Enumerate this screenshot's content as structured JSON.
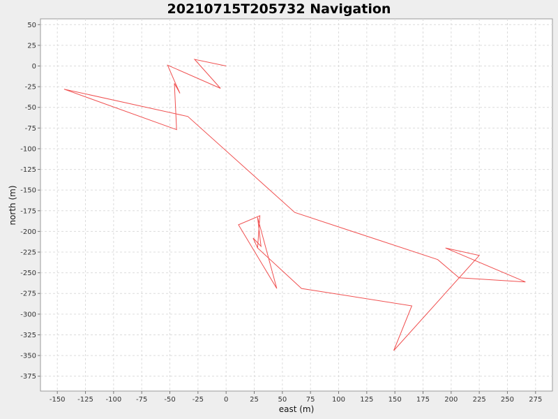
{
  "chart_data": {
    "type": "line",
    "title": "20210715T205732 Navigation",
    "xlabel": "east (m)",
    "ylabel": "north (m)",
    "xlim": [
      -165,
      290
    ],
    "ylim": [
      -393,
      57
    ],
    "xticks": [
      -150,
      -125,
      -100,
      -75,
      -50,
      -25,
      0,
      25,
      50,
      75,
      100,
      125,
      150,
      175,
      200,
      225,
      250,
      275
    ],
    "yticks": [
      50,
      25,
      0,
      -25,
      -50,
      -75,
      -100,
      -125,
      -150,
      -175,
      -200,
      -225,
      -250,
      -275,
      -300,
      -325,
      -350,
      -375
    ],
    "grid": true,
    "series": [
      {
        "color": "#f05050",
        "x": [
          0,
          -28,
          -5,
          -52,
          -45,
          -41,
          -46,
          -44,
          -144,
          -34,
          61,
          188,
          207,
          266,
          195,
          225,
          149,
          165,
          67,
          28,
          24,
          31,
          28,
          45,
          11,
          30,
          28
        ],
        "y": [
          0,
          8,
          -27,
          1,
          -21,
          -33,
          -21,
          -77,
          -28,
          -61,
          -177,
          -234,
          -256,
          -261,
          -220,
          -229,
          -344,
          -290,
          -269,
          -220,
          -208,
          -218,
          -183,
          -269,
          -192,
          -181,
          -220
        ]
      }
    ]
  }
}
